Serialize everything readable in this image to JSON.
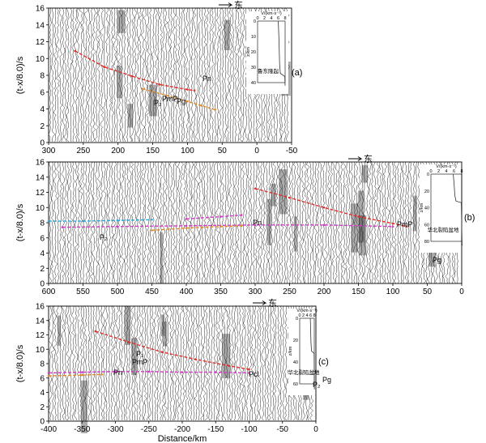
{
  "chart_data": [
    {
      "type": "seismic record section",
      "panel": "(a)",
      "ylabel": "(t-x/8.0)/s",
      "xlim": [
        300,
        -50
      ],
      "ylim": [
        0,
        16
      ],
      "x_ticks": [
        300,
        250,
        200,
        150,
        100,
        50,
        0,
        -50
      ],
      "y_ticks": [
        0,
        2,
        4,
        6,
        8,
        10,
        12,
        14,
        16
      ],
      "direction_label": "东",
      "phase_labels": [
        "Pn",
        "Pg",
        "PmP",
        "P₂"
      ],
      "phase_curves": [
        {
          "color": "#e0302a",
          "points": [
            [
              262,
              10.9
            ],
            [
              220,
              9.0
            ],
            [
              180,
              7.9
            ],
            [
              140,
              6.9
            ],
            [
              100,
              6.3
            ],
            [
              90,
              6.2
            ]
          ]
        },
        {
          "color": "#e08a2a",
          "points": [
            [
              165,
              6.4
            ],
            [
              130,
              5.6
            ],
            [
              100,
              4.9
            ],
            [
              80,
              4.4
            ],
            [
              60,
              3.9
            ]
          ]
        }
      ],
      "inset": {
        "xlabel": "V/(km·s⁻¹)",
        "x_ticks": [
          0,
          2,
          4,
          6,
          8
        ],
        "ylabel": "z/km",
        "y_ticks": [
          0,
          10,
          20,
          30,
          40
        ],
        "caption": "鲁东隆起",
        "profile": [
          [
            6.0,
            0
          ],
          [
            6.1,
            5
          ],
          [
            6.2,
            12
          ],
          [
            6.3,
            20
          ],
          [
            6.4,
            28
          ],
          [
            6.6,
            34
          ],
          [
            7.9,
            36
          ],
          [
            8.0,
            42
          ]
        ]
      }
    },
    {
      "type": "seismic record section",
      "panel": "(b)",
      "ylabel": "(t-x/8.0)/s",
      "xlim": [
        600,
        0
      ],
      "ylim": [
        0,
        16
      ],
      "x_ticks": [
        600,
        550,
        500,
        450,
        400,
        350,
        300,
        250,
        200,
        150,
        100,
        50,
        0
      ],
      "y_ticks": [
        0,
        2,
        4,
        6,
        8,
        10,
        12,
        14,
        16
      ],
      "direction_label": "东",
      "phase_labels": [
        "Pn",
        "PmP",
        "P₂",
        "Pg"
      ],
      "phase_curves": [
        {
          "color": "#e0302a",
          "points": [
            [
              300,
              12.5
            ],
            [
              250,
              11.3
            ],
            [
              200,
              10.0
            ],
            [
              150,
              8.8
            ],
            [
              100,
              7.9
            ],
            [
              80,
              7.5
            ]
          ]
        },
        {
          "color": "#d23cc8",
          "points": [
            [
              580,
              7.4
            ],
            [
              500,
              7.5
            ],
            [
              400,
              7.6
            ],
            [
              300,
              7.7
            ],
            [
              200,
              7.7
            ],
            [
              100,
              7.5
            ]
          ]
        },
        {
          "color": "#2aa8d8",
          "points": [
            [
              600,
              8.2
            ],
            [
              550,
              8.2
            ],
            [
              500,
              8.3
            ],
            [
              450,
              8.4
            ]
          ]
        },
        {
          "color": "#d23cc8",
          "points": [
            [
              400,
              8.5
            ],
            [
              350,
              8.8
            ],
            [
              320,
              9.0
            ]
          ]
        },
        {
          "color": "#e08a2a",
          "points": [
            [
              450,
              7.0
            ],
            [
              400,
              7.3
            ],
            [
              350,
              7.5
            ],
            [
              320,
              7.6
            ]
          ]
        }
      ],
      "inset": {
        "xlabel": "V/(km·s⁻¹)",
        "x_ticks": [
          0,
          2,
          4,
          6,
          8
        ],
        "ylabel": "z/km",
        "y_ticks": [
          0,
          20,
          40,
          60,
          80
        ],
        "caption": "华北裂陷盆地",
        "profile": [
          [
            5.8,
            0
          ],
          [
            6.0,
            10
          ],
          [
            6.2,
            25
          ],
          [
            6.5,
            32
          ],
          [
            7.9,
            34
          ],
          [
            8.0,
            60
          ],
          [
            8.1,
            85
          ]
        ]
      }
    },
    {
      "type": "seismic record section",
      "panel": "(c)",
      "ylabel": "(t-x/8.0)/s",
      "xlabel": "Distance/km",
      "xlim": [
        -400,
        0
      ],
      "ylim": [
        0,
        16
      ],
      "x_ticks": [
        -400,
        -350,
        -300,
        -250,
        -200,
        -150,
        -100,
        -50,
        0
      ],
      "y_ticks": [
        0,
        2,
        4,
        6,
        8,
        10,
        12,
        14,
        16
      ],
      "direction_label": "东",
      "phase_labels": [
        "P₁",
        "PmP",
        "Pn",
        "Pg",
        "Pcl",
        "P₂"
      ],
      "phase_curves": [
        {
          "color": "#e0302a",
          "points": [
            [
              -330,
              12.5
            ],
            [
              -280,
              11.0
            ],
            [
              -230,
              9.6
            ],
            [
              -180,
              8.6
            ],
            [
              -130,
              7.7
            ],
            [
              -100,
              7.2
            ]
          ]
        },
        {
          "color": "#d23cc8",
          "points": [
            [
              -400,
              6.7
            ],
            [
              -350,
              6.8
            ],
            [
              -300,
              6.9
            ],
            [
              -250,
              6.9
            ],
            [
              -200,
              6.8
            ],
            [
              -150,
              6.8
            ],
            [
              -100,
              6.7
            ]
          ]
        },
        {
          "color": "#e08a2a",
          "points": [
            [
              -400,
              6.3
            ],
            [
              -350,
              6.4
            ],
            [
              -320,
              6.5
            ]
          ]
        }
      ],
      "inset": {
        "xlabel": "V/(km·s⁻¹)",
        "x_ticks": [
          0,
          2,
          4,
          6,
          8
        ],
        "ylabel": "z/km",
        "y_ticks": [
          0,
          20,
          40,
          60
        ],
        "caption": "华北裂陷盆地",
        "profile": [
          [
            5.8,
            0
          ],
          [
            6.0,
            10
          ],
          [
            6.2,
            22
          ],
          [
            6.5,
            30
          ],
          [
            7.9,
            32
          ],
          [
            8.0,
            50
          ],
          [
            8.1,
            65
          ]
        ]
      }
    }
  ]
}
